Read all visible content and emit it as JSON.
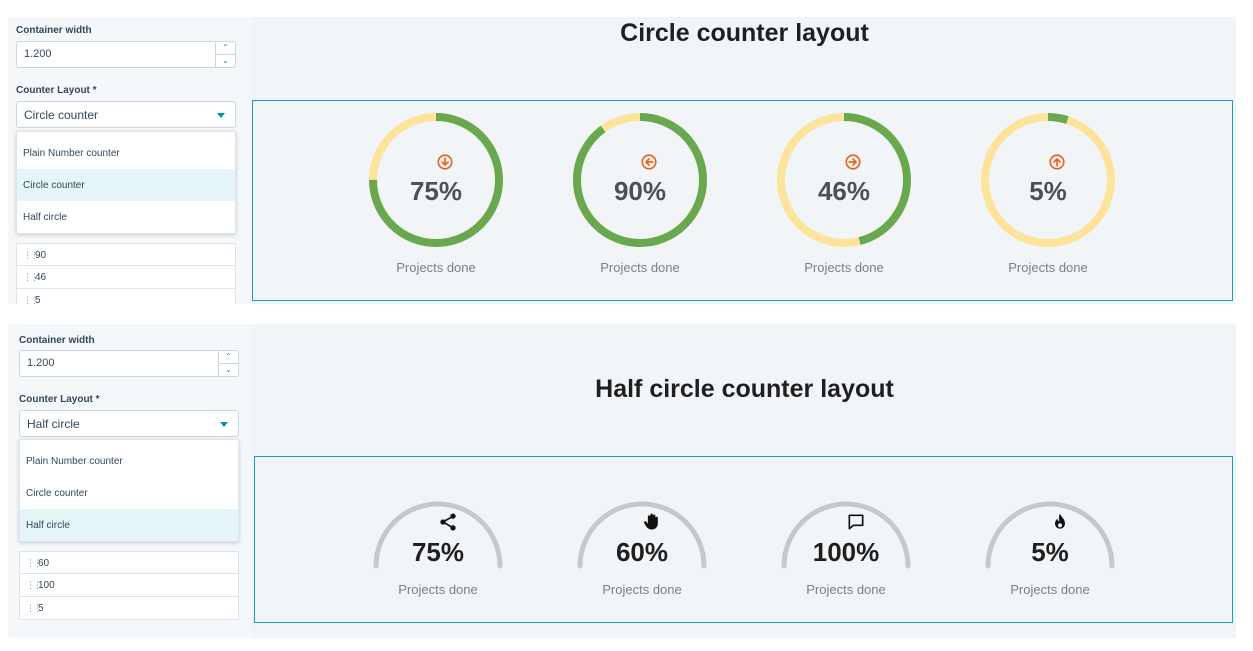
{
  "panel1": {
    "container_width_label": "Container width",
    "container_width_value": "1.200",
    "counter_layout_label": "Counter Layout *",
    "counter_layout_value": "Circle counter",
    "dropdown_options": [
      "Plain Number counter",
      "Circle counter",
      "Half circle"
    ],
    "selected_option": "Circle counter",
    "list_values": [
      "90",
      "46",
      "5"
    ],
    "title": "Circle counter layout",
    "counters": [
      {
        "value": "75%",
        "percent": 75,
        "label": "Projects done",
        "icon": "arrow-down-circle-icon"
      },
      {
        "value": "90%",
        "percent": 90,
        "label": "Projects done",
        "icon": "arrow-left-circle-icon"
      },
      {
        "value": "46%",
        "percent": 46,
        "label": "Projects done",
        "icon": "arrow-right-circle-icon"
      },
      {
        "value": "5%",
        "percent": 5,
        "label": "Projects done",
        "icon": "arrow-up-circle-icon"
      }
    ]
  },
  "panel2": {
    "container_width_label": "Container width",
    "container_width_value": "1.200",
    "counter_layout_label": "Counter Layout *",
    "counter_layout_value": "Half circle",
    "dropdown_options": [
      "Plain Number counter",
      "Circle counter",
      "Half circle"
    ],
    "selected_option": "Half circle",
    "list_values": [
      "60",
      "100",
      "5"
    ],
    "title": "Half circle counter layout",
    "counters": [
      {
        "value": "75%",
        "label": "Projects done",
        "icon": "share-icon"
      },
      {
        "value": "60%",
        "label": "Projects done",
        "icon": "hand-icon"
      },
      {
        "value": "100%",
        "label": "Projects done",
        "icon": "chat-bubble-icon"
      },
      {
        "value": "5%",
        "label": "Projects done",
        "icon": "flame-icon"
      }
    ]
  },
  "colors": {
    "progress": "#6aa84f",
    "track": "#fde49c",
    "half_arc": "#c8c8c8",
    "icon_accent": "#e8621c",
    "border_accent": "#1a9bc3"
  }
}
